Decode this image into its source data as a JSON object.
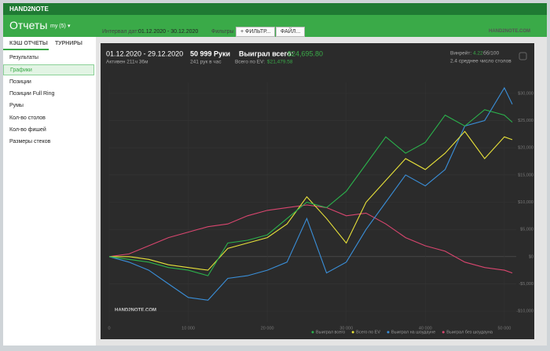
{
  "app": {
    "name": "HAND2NOTE",
    "title": "Отчеты",
    "user": "my (5)"
  },
  "sidebar": {
    "tabs": [
      "КЭШ ОТЧЕТЫ",
      "ТУРНИРЫ"
    ],
    "items": [
      "Результаты",
      "Графики",
      "Позиции",
      "Позиции Full Ring",
      "Румы",
      "Кол-во столов",
      "Кол-во фишей",
      "Размеры стеков"
    ],
    "selected": 1
  },
  "toolbar": {
    "interval_label": "Интервал дат:",
    "interval": "01.12.2020 - 30.12.2020",
    "filters_label": "Фильтры",
    "filter_button": "ФИЛЬТР...",
    "file_button": "ФАЙЛ...",
    "logo": "HAND2NOTE.COM"
  },
  "stats": {
    "period": "01.12.2020 - 29.12.2020",
    "active": "Активен 211ч 36м",
    "hands": "50 999 Руки",
    "hands_rate": "241 рук в час",
    "won_label": "Выиграл всего:",
    "won": "$24,695.80",
    "ev_label": "Всего по EV:",
    "ev": "$21,479.58",
    "winrate_label": "Винрейт:",
    "winrate": "4.22",
    "winrate_unit": "бб/100",
    "tables": "2.4 среднее число столов"
  },
  "chart": {
    "type": "line",
    "watermark": "HAND2NOTE.COM",
    "x": [
      0,
      2500,
      5000,
      7500,
      10000,
      12500,
      15000,
      17500,
      20000,
      22500,
      25000,
      27500,
      30000,
      32500,
      35000,
      37500,
      40000,
      42500,
      45000,
      47500,
      50000,
      50999
    ],
    "series": [
      {
        "name": "Выиграл без шоудауна",
        "color": "#d9466f",
        "values": [
          0,
          500,
          2000,
          3500,
          4500,
          5500,
          6000,
          7500,
          8500,
          9000,
          9500,
          9000,
          7500,
          8000,
          6000,
          3500,
          2000,
          1000,
          -1000,
          -2000,
          -2500,
          -3000
        ]
      },
      {
        "name": "Выиграл на шоудауне",
        "color": "#3a8fd9",
        "values": [
          0,
          -1000,
          -2500,
          -5000,
          -7500,
          -8000,
          -4000,
          -3500,
          -2500,
          -1000,
          7000,
          -3000,
          -1000,
          5000,
          10000,
          15000,
          13000,
          16000,
          24000,
          25000,
          31000,
          28000
        ]
      },
      {
        "name": "Всего по EV",
        "color": "#e8e23a",
        "values": [
          0,
          0,
          -500,
          -1500,
          -2000,
          -2500,
          1500,
          2500,
          3500,
          6000,
          11000,
          7000,
          2500,
          10000,
          14000,
          18000,
          16000,
          19000,
          23000,
          18000,
          22000,
          21479
        ]
      },
      {
        "name": "Выиграл всего",
        "color": "#2bb24c",
        "values": [
          0,
          -500,
          -1000,
          -2000,
          -2500,
          -3500,
          2500,
          3000,
          4000,
          7000,
          10000,
          9000,
          12000,
          17000,
          22000,
          19000,
          21000,
          26000,
          24000,
          27000,
          26000,
          24695
        ]
      }
    ],
    "legend_order": [
      3,
      2,
      1,
      0
    ],
    "xlim": [
      0,
      51500
    ],
    "ylim": [
      -12000,
      32000
    ],
    "xticks": [
      0,
      {
        "value": 10000,
        "label": "10 000"
      },
      {
        "value": 20000,
        "label": "20 000"
      },
      {
        "value": 30000,
        "label": "30 000"
      },
      {
        "value": 40000,
        "label": "40 000"
      },
      {
        "value": 50000,
        "label": "50 000"
      }
    ],
    "yticks": [
      {
        "value": -10000,
        "label": "-$10,000"
      },
      {
        "value": -5000,
        "label": "-$5,000"
      },
      {
        "value": 0,
        "label": "$0"
      },
      {
        "value": 5000,
        "label": "$5,000"
      },
      {
        "value": 10000,
        "label": "$10,000"
      },
      {
        "value": 15000,
        "label": "$15,000"
      },
      {
        "value": 20000,
        "label": "$20,000"
      },
      {
        "value": 25000,
        "label": "$25,000"
      },
      {
        "value": 30000,
        "label": "$30,000"
      }
    ],
    "grid": true
  }
}
